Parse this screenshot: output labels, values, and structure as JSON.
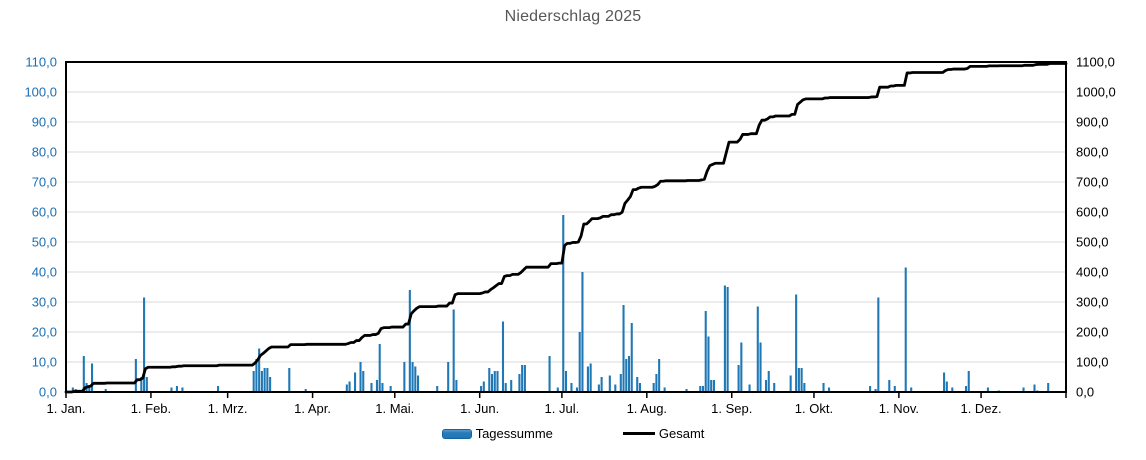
{
  "title": "Niederschlag 2025",
  "legend": {
    "bars_label": "Tagessumme",
    "line_label": "Gesamt"
  },
  "colors": {
    "bar": "#1F77B4",
    "bar_border": "#1464A0",
    "line": "#000000",
    "grid": "#D9D9D9",
    "frame": "#000000",
    "left_axis_label": "#1B6FB5",
    "right_axis_label": "#000000",
    "x_axis_label": "#000000",
    "title": "#575757"
  },
  "chart_data": {
    "type": "bar",
    "subtype": "daily-bars-with-cumulative-line",
    "title": "Niederschlag 2025",
    "xlabel": "",
    "ylabel_left": "",
    "ylabel_right": "",
    "grid": true,
    "legend_position": "bottom-center",
    "left_axis": {
      "min": 0,
      "max": 110,
      "step": 10,
      "decimal_separator": ","
    },
    "right_axis": {
      "min": 0,
      "max": 1100,
      "step": 100,
      "decimal_separator": ","
    },
    "x_axis": {
      "unit": "day-of-year-2025",
      "days_total": 365,
      "month_lengths": [
        31,
        28,
        31,
        30,
        31,
        30,
        31,
        31,
        30,
        31,
        30,
        31
      ],
      "tick_labels": [
        "1. Jan.",
        "1. Feb.",
        "1. Mrz.",
        "1. Apr.",
        "1. Mai.",
        "1. Jun.",
        "1. Jul.",
        "1. Aug.",
        "1. Sep.",
        "1. Okt.",
        "1. Nov.",
        "1. Dez."
      ]
    },
    "series": [
      {
        "name": "Tagessumme",
        "type": "bar",
        "axis": "left",
        "points": [
          [
            2,
            1.5
          ],
          [
            3,
            1
          ],
          [
            6,
            12
          ],
          [
            7,
            3
          ],
          [
            8,
            2
          ],
          [
            9,
            9.5
          ],
          [
            14,
            1
          ],
          [
            25,
            11
          ],
          [
            27,
            5
          ],
          [
            28,
            31.5
          ],
          [
            29,
            5
          ],
          [
            38,
            1.5
          ],
          [
            40,
            2
          ],
          [
            42,
            1.5
          ],
          [
            55,
            2
          ],
          [
            68,
            7
          ],
          [
            69,
            11
          ],
          [
            70,
            14.5
          ],
          [
            71,
            7
          ],
          [
            72,
            8
          ],
          [
            73,
            8
          ],
          [
            74,
            5
          ],
          [
            81,
            8
          ],
          [
            87,
            1
          ],
          [
            102,
            2.5
          ],
          [
            103,
            3.5
          ],
          [
            105,
            6.5
          ],
          [
            107,
            10
          ],
          [
            108,
            7
          ],
          [
            111,
            3
          ],
          [
            113,
            4
          ],
          [
            114,
            16
          ],
          [
            115,
            3
          ],
          [
            118,
            2
          ],
          [
            123,
            10
          ],
          [
            125,
            34
          ],
          [
            126,
            10
          ],
          [
            127,
            8.5
          ],
          [
            128,
            5.5
          ],
          [
            135,
            2
          ],
          [
            139,
            10
          ],
          [
            141,
            27.5
          ],
          [
            142,
            4
          ],
          [
            151,
            2
          ],
          [
            152,
            3.5
          ],
          [
            154,
            8
          ],
          [
            155,
            6
          ],
          [
            156,
            7
          ],
          [
            157,
            7
          ],
          [
            159,
            23.5
          ],
          [
            160,
            3
          ],
          [
            162,
            4
          ],
          [
            165,
            6
          ],
          [
            166,
            9
          ],
          [
            167,
            9
          ],
          [
            176,
            12
          ],
          [
            179,
            1.5
          ],
          [
            181,
            59
          ],
          [
            182,
            7
          ],
          [
            184,
            3
          ],
          [
            186,
            1.5
          ],
          [
            187,
            20
          ],
          [
            188,
            40
          ],
          [
            190,
            8.5
          ],
          [
            191,
            9.5
          ],
          [
            194,
            2.5
          ],
          [
            195,
            5
          ],
          [
            198,
            5.5
          ],
          [
            200,
            2.5
          ],
          [
            202,
            6
          ],
          [
            203,
            29
          ],
          [
            204,
            11
          ],
          [
            205,
            12
          ],
          [
            206,
            23
          ],
          [
            208,
            5
          ],
          [
            209,
            3
          ],
          [
            214,
            3
          ],
          [
            215,
            6
          ],
          [
            216,
            11
          ],
          [
            218,
            1.5
          ],
          [
            226,
            1
          ],
          [
            231,
            2
          ],
          [
            232,
            2
          ],
          [
            233,
            27
          ],
          [
            234,
            18.5
          ],
          [
            235,
            4
          ],
          [
            236,
            4
          ],
          [
            240,
            35.5
          ],
          [
            241,
            35
          ],
          [
            245,
            9
          ],
          [
            246,
            16.5
          ],
          [
            249,
            2.5
          ],
          [
            252,
            28.5
          ],
          [
            253,
            16.5
          ],
          [
            255,
            4
          ],
          [
            256,
            7
          ],
          [
            258,
            3
          ],
          [
            264,
            5.5
          ],
          [
            266,
            32.5
          ],
          [
            267,
            8
          ],
          [
            268,
            8
          ],
          [
            269,
            3
          ],
          [
            276,
            3
          ],
          [
            278,
            1.5
          ],
          [
            293,
            2
          ],
          [
            295,
            1
          ],
          [
            296,
            31.5
          ],
          [
            300,
            4
          ],
          [
            302,
            2
          ],
          [
            306,
            41.5
          ],
          [
            308,
            1.5
          ],
          [
            320,
            6.5
          ],
          [
            321,
            3.5
          ],
          [
            323,
            1.5
          ],
          [
            328,
            2
          ],
          [
            329,
            7
          ],
          [
            336,
            1.5
          ],
          [
            340,
            0.5
          ],
          [
            349,
            1.5
          ],
          [
            353,
            2.5
          ],
          [
            354,
            0.5
          ],
          [
            358,
            3
          ]
        ]
      },
      {
        "name": "Gesamt",
        "type": "line",
        "axis": "right",
        "derived": "cumulative-sum-of-Tagessumme",
        "year_total_approx": 1095.5
      }
    ]
  }
}
